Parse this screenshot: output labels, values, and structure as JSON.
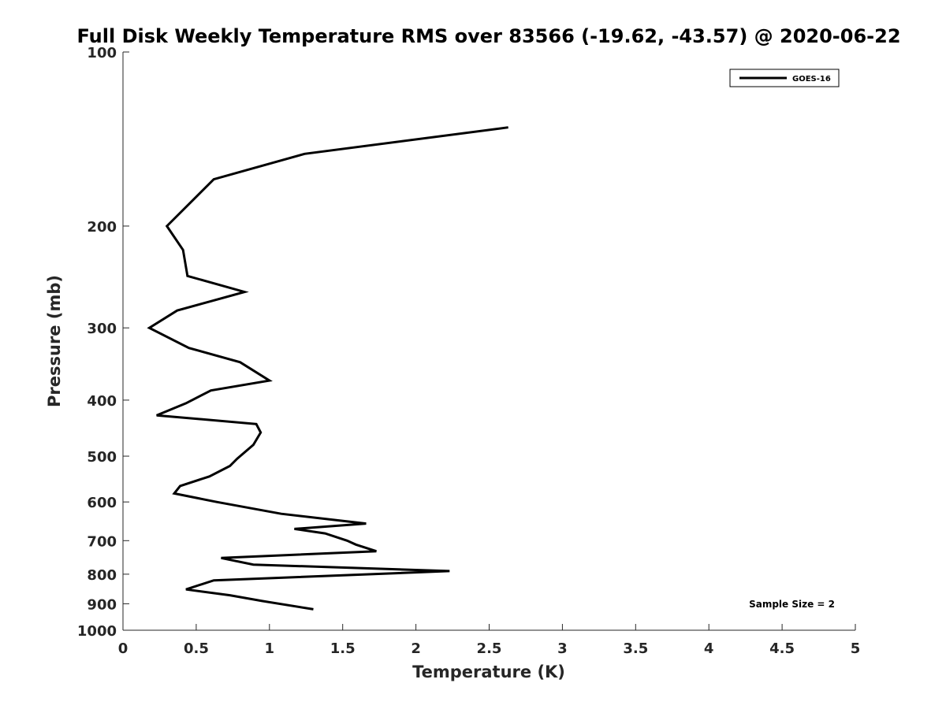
{
  "chart_data": {
    "type": "line",
    "title": "Full Disk Weekly Temperature RMS over 83566 (-19.62, -43.57) @ 2020-06-22",
    "xlabel": "Temperature (K)",
    "ylabel": "Pressure (mb)",
    "xlim": [
      0,
      5
    ],
    "ylim": [
      100,
      1000
    ],
    "y_scale": "log",
    "y_reversed": true,
    "x_ticks": [
      "0",
      "0.5",
      "1",
      "1.5",
      "2",
      "2.5",
      "3",
      "3.5",
      "4",
      "4.5",
      "5"
    ],
    "y_ticks": [
      {
        "value": 100,
        "label": "100"
      },
      {
        "value": 200,
        "label": "200"
      },
      {
        "value": 300,
        "label": "300"
      },
      {
        "value": 400,
        "label": "400"
      },
      {
        "value": 500,
        "label": "500"
      },
      {
        "value": 600,
        "label": "600"
      },
      {
        "value": 700,
        "label": "700"
      },
      {
        "value": 800,
        "label": "800"
      },
      {
        "value": 900,
        "label": "900"
      },
      {
        "value": 1000,
        "label": "1000"
      }
    ],
    "grid": false,
    "legend_position": "top-right",
    "series": [
      {
        "name": "GOES-16",
        "color": "#000000",
        "points": [
          [
            2.63,
            135
          ],
          [
            1.24,
            150
          ],
          [
            0.62,
            166
          ],
          [
            0.3,
            200
          ],
          [
            0.41,
            220
          ],
          [
            0.44,
            244
          ],
          [
            0.83,
            260
          ],
          [
            0.37,
            280
          ],
          [
            0.18,
            300
          ],
          [
            0.45,
            325
          ],
          [
            0.8,
            344
          ],
          [
            1.0,
            370
          ],
          [
            0.6,
            385
          ],
          [
            0.43,
            405
          ],
          [
            0.23,
            425
          ],
          [
            0.91,
            440
          ],
          [
            0.94,
            455
          ],
          [
            0.89,
            478
          ],
          [
            0.78,
            505
          ],
          [
            0.73,
            520
          ],
          [
            0.59,
            542
          ],
          [
            0.39,
            563
          ],
          [
            0.35,
            580
          ],
          [
            0.64,
            600
          ],
          [
            1.08,
            629
          ],
          [
            1.66,
            654
          ],
          [
            1.17,
            668
          ],
          [
            1.38,
            680
          ],
          [
            1.53,
            700
          ],
          [
            1.59,
            711
          ],
          [
            1.73,
            730
          ],
          [
            0.67,
            750
          ],
          [
            0.89,
            770
          ],
          [
            2.23,
            790
          ],
          [
            0.62,
            820
          ],
          [
            0.43,
            850
          ],
          [
            0.73,
            870
          ],
          [
            0.95,
            890
          ],
          [
            1.3,
            920
          ]
        ]
      }
    ],
    "annotation": "Sample Size = 2"
  }
}
